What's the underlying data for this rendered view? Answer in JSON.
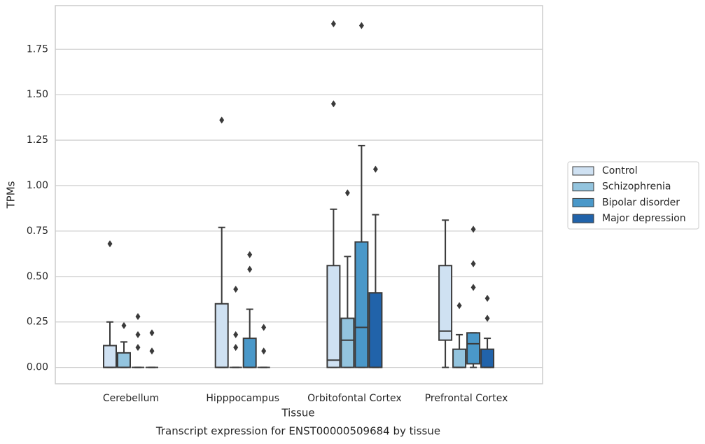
{
  "chart_data": {
    "type": "box",
    "title": "Transcript expression for ENST00000509684 by tissue",
    "xlabel": "Tissue",
    "ylabel": "TPMs",
    "categories": [
      "Cerebellum",
      "Hipppocampus",
      "Orbitofontal Cortex",
      "Prefrontal Cortex"
    ],
    "ylim": [
      -0.09,
      1.99
    ],
    "yticks": [
      {
        "value": 0,
        "label": "0.00"
      },
      {
        "value": 0.25,
        "label": "0.25"
      },
      {
        "value": 0.5,
        "label": "0.50"
      },
      {
        "value": 0.75,
        "label": "0.75"
      },
      {
        "value": 1,
        "label": "1.00"
      },
      {
        "value": 1.25,
        "label": "1.25"
      },
      {
        "value": 1.5,
        "label": "1.50"
      },
      {
        "value": 1.75,
        "label": "1.75"
      }
    ],
    "grid": true,
    "legend": "right",
    "series": [
      {
        "name": "Control",
        "color": "#cfe1f2",
        "low": [
          0,
          0,
          0,
          0
        ],
        "q1": [
          0,
          0,
          0,
          0.15
        ],
        "median": [
          0,
          0,
          0.04,
          0.2
        ],
        "q3": [
          0.12,
          0.35,
          0.56,
          0.56
        ],
        "high": [
          0.25,
          0.77,
          0.87,
          0.81
        ],
        "outliers": [
          [
            0.68
          ],
          [
            1.36
          ],
          [
            1.45,
            1.89
          ],
          []
        ]
      },
      {
        "name": "Schizophrenia",
        "color": "#93c4de",
        "low": [
          0,
          0,
          0,
          0
        ],
        "q1": [
          0,
          0,
          0,
          0
        ],
        "median": [
          0,
          0,
          0.15,
          0
        ],
        "q3": [
          0.08,
          0,
          0.27,
          0.1
        ],
        "high": [
          0.14,
          0,
          0.61,
          0.18
        ],
        "outliers": [
          [
            0.23
          ],
          [
            0.43,
            0.18,
            0.11
          ],
          [
            0.96
          ],
          [
            0.34
          ]
        ]
      },
      {
        "name": "Bipolar disorder",
        "color": "#4a98c9",
        "low": [
          0,
          0,
          0,
          0
        ],
        "q1": [
          0,
          0,
          0,
          0.02
        ],
        "median": [
          0,
          0,
          0.22,
          0.13
        ],
        "q3": [
          0,
          0.16,
          0.69,
          0.19
        ],
        "high": [
          0,
          0.32,
          1.22,
          0.19
        ],
        "outliers": [
          [
            0.28,
            0.18,
            0.11
          ],
          [
            0.62,
            0.54
          ],
          [
            1.88
          ],
          [
            0.76,
            0.57,
            0.44
          ]
        ]
      },
      {
        "name": "Major depression",
        "color": "#2163aa",
        "low": [
          0,
          0,
          0,
          0
        ],
        "q1": [
          0,
          0,
          0,
          0
        ],
        "median": [
          0,
          0,
          0,
          0
        ],
        "q3": [
          0,
          0,
          0.41,
          0.1
        ],
        "high": [
          0,
          0,
          0.84,
          0.16
        ],
        "outliers": [
          [
            0.19,
            0.09
          ],
          [
            0.22,
            0.09
          ],
          [
            1.09
          ],
          [
            0.38,
            0.27
          ]
        ]
      }
    ]
  }
}
